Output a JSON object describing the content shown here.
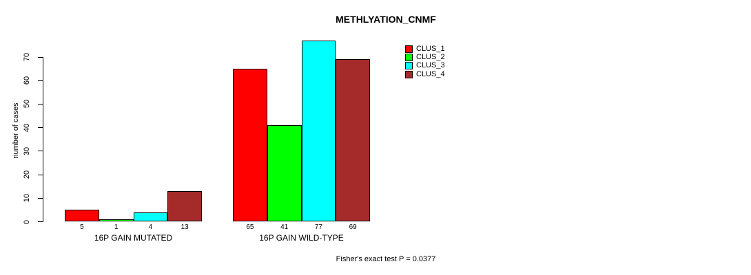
{
  "chart_data": {
    "type": "bar",
    "title": "METHLYATION_CNMF",
    "ylabel": "number of cases",
    "yticks": [
      0,
      10,
      20,
      30,
      40,
      50,
      60,
      70
    ],
    "ylim": [
      0,
      77
    ],
    "grid": false,
    "legend_position": "top-right",
    "series": [
      {
        "name": "CLUS_1",
        "color": "#ff0000"
      },
      {
        "name": "CLUS_2",
        "color": "#00ff00"
      },
      {
        "name": "CLUS_3",
        "color": "#00ffff"
      },
      {
        "name": "CLUS_4",
        "color": "#a52a2a"
      }
    ],
    "groups": [
      {
        "label": "16P GAIN MUTATED",
        "values": [
          5,
          1,
          4,
          13
        ]
      },
      {
        "label": "16P GAIN WILD-TYPE",
        "values": [
          65,
          41,
          77,
          69
        ]
      }
    ],
    "bar_value_labels_shown": true,
    "annotation": "Fisher's exact test P = 0.0377"
  }
}
